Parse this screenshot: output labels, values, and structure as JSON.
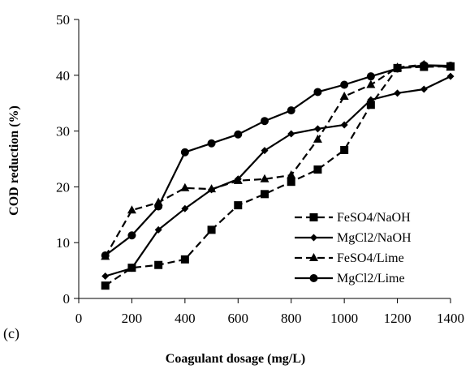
{
  "chart_data": {
    "type": "line",
    "panel_label": "(c)",
    "xlabel": "Coagulant dosage (mg/L)",
    "ylabel": "COD reduction (%)",
    "xlim": [
      0,
      1400
    ],
    "ylim": [
      0,
      50
    ],
    "x_ticks": [
      0,
      200,
      400,
      600,
      800,
      1000,
      1200,
      1400
    ],
    "y_ticks": [
      0,
      10,
      20,
      30,
      40,
      50
    ],
    "grid": false,
    "legend_position": "bottom-right",
    "series": [
      {
        "name": "FeSO4/NaOH",
        "line": "dashed",
        "marker": "square",
        "color": "#000000",
        "x": [
          100,
          200,
          300,
          400,
          500,
          600,
          700,
          800,
          900,
          1000,
          1100,
          1200,
          1300,
          1400
        ],
        "y": [
          2.3,
          5.5,
          6.0,
          7.0,
          12.3,
          16.7,
          18.7,
          20.9,
          23.1,
          26.6,
          34.7,
          41.3,
          41.5,
          41.6
        ]
      },
      {
        "name": "MgCl2/NaOH",
        "line": "solid",
        "marker": "diamond",
        "color": "#000000",
        "x": [
          100,
          200,
          300,
          400,
          500,
          600,
          700,
          800,
          900,
          1000,
          1100,
          1200,
          1300,
          1400
        ],
        "y": [
          4.0,
          5.4,
          12.3,
          16.1,
          19.5,
          21.4,
          26.5,
          29.5,
          30.4,
          31.1,
          35.6,
          36.8,
          37.5,
          39.8
        ]
      },
      {
        "name": "FeSO4/Lime",
        "line": "dashed",
        "marker": "triangle",
        "color": "#000000",
        "x": [
          100,
          200,
          300,
          400,
          500,
          600,
          700,
          800,
          900,
          1000,
          1100,
          1200,
          1300,
          1400
        ],
        "y": [
          7.5,
          15.8,
          17.2,
          19.8,
          19.6,
          21.1,
          21.4,
          22.1,
          28.5,
          36.2,
          38.3,
          41.4,
          41.9,
          41.4
        ]
      },
      {
        "name": "MgCl2/Lime",
        "line": "solid",
        "marker": "circle",
        "color": "#000000",
        "x": [
          100,
          200,
          300,
          400,
          500,
          600,
          700,
          800,
          900,
          1000,
          1100,
          1200,
          1300,
          1400
        ],
        "y": [
          7.7,
          11.3,
          16.5,
          26.2,
          27.8,
          29.4,
          31.8,
          33.7,
          37.0,
          38.3,
          39.8,
          41.2,
          41.8,
          41.7
        ]
      }
    ]
  }
}
